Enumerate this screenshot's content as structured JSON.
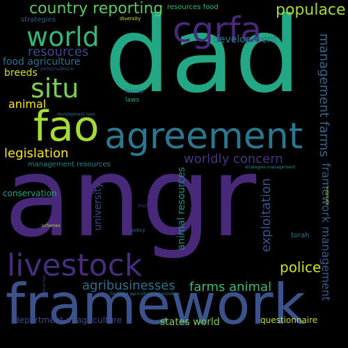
{
  "words": [
    {
      "text": "angr",
      "color": "#482878"
    },
    {
      "text": "dad",
      "color": "#22a884"
    },
    {
      "text": "framework",
      "color": "#3b528b"
    },
    {
      "text": "agreement",
      "color": "#2a788e"
    },
    {
      "text": "livestock",
      "color": "#472d7b"
    },
    {
      "text": "fao",
      "color": "#a5db36"
    },
    {
      "text": "cgrfa",
      "color": "#482878"
    },
    {
      "text": "world",
      "color": "#35b779"
    },
    {
      "text": "situ",
      "color": "#7ad151"
    },
    {
      "text": "country reporting",
      "color": "#5ec962"
    },
    {
      "text": "populace",
      "color": "#a5db36"
    },
    {
      "text": "resources",
      "color": "#3e4989"
    },
    {
      "text": "development",
      "color": "#2a788e"
    },
    {
      "text": "food agriculture",
      "color": "#2c728e"
    },
    {
      "text": "breeds",
      "color": "#d2e21b"
    },
    {
      "text": "management farms",
      "color": "#31688e"
    },
    {
      "text": "animal",
      "color": "#fde725"
    },
    {
      "text": "legislation",
      "color": "#fde725"
    },
    {
      "text": "worldly concern",
      "color": "#453781"
    },
    {
      "text": "management resources",
      "color": "#26828e"
    },
    {
      "text": "conservation",
      "color": "#20a486"
    },
    {
      "text": "university",
      "color": "#3e4989"
    },
    {
      "text": "animal resources",
      "color": "#21918c"
    },
    {
      "text": "exploitation",
      "color": "#3b528b"
    },
    {
      "text": "framework management",
      "color": "#365c8d"
    },
    {
      "text": "police",
      "color": "#d2e21b"
    },
    {
      "text": "agribusinesses",
      "color": "#2c728e"
    },
    {
      "text": "farms animal",
      "color": "#3bbb75"
    },
    {
      "text": "states world",
      "color": "#7ad151"
    },
    {
      "text": "department of agriculture",
      "color": "#3e4989"
    },
    {
      "text": "questionnaire",
      "color": "#bddf26"
    },
    {
      "text": "torah",
      "color": "#2a788e"
    },
    {
      "text": "resources food",
      "color": "#3bbb75"
    },
    {
      "text": "diversity",
      "color": "#d2e21b"
    },
    {
      "text": "strategies",
      "color": "#365c8d"
    },
    {
      "text": "jurisprudence",
      "color": "#414487"
    },
    {
      "text": "farms",
      "color": "#31688e"
    },
    {
      "text": "laws",
      "color": "#22a884"
    },
    {
      "text": "development laws",
      "color": "#2c728e"
    },
    {
      "text": "strategies management",
      "color": "#21918c"
    },
    {
      "text": "agriculture",
      "color": "#bddf26"
    },
    {
      "text": "models",
      "color": "#472d7b"
    },
    {
      "text": "policy",
      "color": "#31688e"
    },
    {
      "text": "schemes",
      "color": "#b5de2b"
    },
    {
      "text": "food and agriculture organization",
      "color": "#26828e"
    },
    {
      "text": "world animal",
      "color": "#3e4989"
    }
  ]
}
